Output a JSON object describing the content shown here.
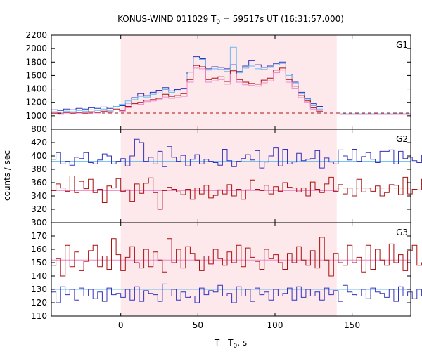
{
  "title": {
    "prefix": "KONUS-WIND 011029 T",
    "sub": "0",
    "suffix": " = 59517s UT (16:31:57.000)"
  },
  "ylabel": "counts / sec",
  "xlabel": {
    "prefix": "T - T",
    "sub": "0",
    "suffix": ", s"
  },
  "colors": {
    "blue": "#3333bb",
    "red": "#aa1111",
    "lightblue": "#66bbee",
    "pink": "#ee88cc",
    "interval": "#fde8ec",
    "dash_blue": "#3333bb",
    "dash_red": "#aa1111"
  },
  "chart_data": [
    {
      "type": "line",
      "name": "G1",
      "xlim": [
        -45,
        188
      ],
      "xticks": [
        0,
        50,
        100,
        150
      ],
      "ylim": [
        800,
        2200
      ],
      "yticks": [
        800,
        1000,
        1200,
        1400,
        1600,
        1800,
        2000,
        2200
      ],
      "highlight_interval": [
        0,
        140
      ],
      "x_start": -45,
      "x_step": 4,
      "series": [
        {
          "color": "blue",
          "step": true,
          "values": [
            1090,
            1080,
            1100,
            1090,
            1110,
            1100,
            1120,
            1110,
            1130,
            1110,
            1160,
            1150,
            1190,
            1270,
            1330,
            1300,
            1350,
            1380,
            1420,
            1370,
            1390,
            1410,
            1650,
            1880,
            1850,
            1700,
            1730,
            1720,
            1700,
            1760,
            1660,
            1740,
            1820,
            1760,
            1720,
            1740,
            1780,
            1800,
            1620,
            1500,
            1350,
            1260,
            1180,
            1140
          ]
        },
        {
          "color": "lightblue",
          "step": true,
          "values": [
            1060,
            1050,
            1070,
            1060,
            1080,
            1070,
            1090,
            1080,
            1100,
            1080,
            1140,
            1170,
            1220,
            1240,
            1290,
            1280,
            1320,
            1340,
            1390,
            1350,
            1370,
            1400,
            1620,
            1860,
            1840,
            1680,
            1700,
            1690,
            1660,
            2020,
            1640,
            1710,
            1740,
            1700,
            1690,
            1720,
            1760,
            1780,
            1600,
            1480,
            1330,
            1250,
            1150,
            1100
          ]
        },
        {
          "color": "red",
          "step": true,
          "values": [
            1040,
            1030,
            1050,
            1040,
            1050,
            1040,
            1060,
            1050,
            1070,
            1060,
            1100,
            1080,
            1140,
            1180,
            1200,
            1230,
            1240,
            1260,
            1320,
            1290,
            1300,
            1330,
            1540,
            1750,
            1730,
            1540,
            1560,
            1580,
            1510,
            1670,
            1540,
            1500,
            1480,
            1470,
            1530,
            1560,
            1680,
            1710,
            1540,
            1440,
            1300,
            1220,
            1120,
            1070
          ]
        },
        {
          "color": "pink",
          "step": true,
          "values": [
            1030,
            1020,
            1040,
            1030,
            1040,
            1030,
            1050,
            1040,
            1060,
            1050,
            1090,
            1070,
            1120,
            1160,
            1170,
            1210,
            1220,
            1240,
            1280,
            1260,
            1270,
            1290,
            1500,
            1710,
            1700,
            1500,
            1520,
            1540,
            1470,
            1620,
            1500,
            1460,
            1450,
            1440,
            1490,
            1520,
            1640,
            1680,
            1500,
            1410,
            1270,
            1200,
            1100,
            1060
          ]
        }
      ],
      "reference_lines": [
        {
          "color": "dash_blue",
          "dashed": true,
          "value": 1160,
          "from": -45,
          "to": 188
        },
        {
          "color": "dash_red",
          "dashed": true,
          "value": 1040,
          "from": -45,
          "to": 188
        }
      ],
      "post_segments": [
        {
          "color": "lightblue",
          "value": 1030,
          "from": 142,
          "to": 188
        },
        {
          "color": "pink",
          "value": 1020,
          "from": 142,
          "to": 188
        }
      ]
    },
    {
      "type": "line",
      "name": "G2",
      "xlim": [
        -45,
        188
      ],
      "xticks": [
        0,
        50,
        100,
        150
      ],
      "ylim": [
        300,
        440
      ],
      "yticks": [
        300,
        320,
        340,
        360,
        380,
        400,
        420
      ],
      "highlight_interval": [
        0,
        140
      ],
      "x_start": -45,
      "x_step": 3,
      "series": [
        {
          "color": "blue",
          "step": true,
          "values": [
            395,
            405,
            388,
            392,
            386,
            398,
            396,
            405,
            390,
            388,
            394,
            403,
            400,
            388,
            392,
            396,
            385,
            400,
            425,
            420,
            392,
            398,
            388,
            407,
            384,
            414,
            398,
            392,
            401,
            385,
            395,
            402,
            388,
            395,
            392,
            390,
            386,
            410,
            393,
            384,
            392,
            396,
            402,
            394,
            408,
            382,
            391,
            400,
            412,
            385,
            410,
            388,
            391,
            404,
            393,
            395,
            396,
            408,
            382,
            397,
            391,
            388,
            409,
            400,
            394,
            410,
            392,
            399,
            405,
            395,
            390,
            407,
            407,
            409,
            388,
            407,
            396,
            398,
            393,
            390,
            401,
            399,
            388,
            396,
            392,
            395,
            403,
            392,
            400,
            399,
            384,
            399,
            387,
            410,
            407,
            394,
            400,
            402,
            398,
            384,
            394,
            398,
            408,
            388,
            390,
            399,
            385
          ]
        },
        {
          "color": "red",
          "step": true,
          "values": [
            348,
            358,
            352,
            347,
            370,
            345,
            362,
            351,
            365,
            345,
            350,
            330,
            355,
            352,
            366,
            347,
            349,
            332,
            358,
            344,
            359,
            367,
            345,
            320,
            348,
            353,
            350,
            346,
            342,
            350,
            335,
            352,
            343,
            356,
            337,
            341,
            349,
            343,
            357,
            340,
            350,
            335,
            349,
            364,
            350,
            348,
            356,
            343,
            354,
            347,
            360,
            353,
            352,
            346,
            352,
            340,
            361,
            350,
            345,
            358,
            368,
            347,
            357,
            343,
            352,
            340,
            365,
            346,
            352,
            347,
            355,
            340,
            345,
            357,
            356,
            342,
            368,
            343,
            350,
            349,
            365,
            356,
            345,
            353,
            350,
            341,
            345,
            360,
            349,
            347,
            348,
            345,
            351,
            345,
            360,
            349,
            358,
            346,
            362,
            348,
            352,
            345,
            352,
            347,
            353,
            355,
            350
          ]
        }
      ],
      "reference_lines": [
        {
          "color": "lightblue",
          "dashed": false,
          "value": 392,
          "from": -45,
          "to": 188
        },
        {
          "color": "pink",
          "dashed": false,
          "value": 348,
          "from": -45,
          "to": 140
        },
        {
          "color": "dash_red",
          "dashed": true,
          "value": 352,
          "from": 140,
          "to": 188
        }
      ],
      "post_segments": []
    },
    {
      "type": "line",
      "name": "G3",
      "xlim": [
        -45,
        188
      ],
      "xticks": [
        0,
        50,
        100,
        150
      ],
      "ylim": [
        110,
        180
      ],
      "yticks": [
        110,
        120,
        130,
        140,
        150,
        160,
        170
      ],
      "highlight_interval": [
        0,
        140
      ],
      "x_start": -45,
      "x_step": 3,
      "series": [
        {
          "color": "blue",
          "step": true,
          "values": [
            128,
            120,
            132,
            126,
            130,
            122,
            131,
            125,
            130,
            123,
            128,
            121,
            131,
            126,
            127,
            124,
            130,
            122,
            132,
            121,
            129,
            127,
            126,
            121,
            134,
            125,
            130,
            122,
            128,
            124,
            125,
            120,
            131,
            126,
            129,
            128,
            133,
            125,
            127,
            120,
            132,
            125,
            130,
            121,
            131,
            126,
            128,
            122,
            130,
            125,
            127,
            131,
            122,
            132,
            124,
            130,
            125,
            128,
            122,
            131,
            126,
            129,
            121,
            133,
            128,
            126,
            125,
            130,
            123,
            131,
            128,
            127,
            124,
            130,
            121,
            132,
            125,
            128,
            123,
            130,
            125,
            129,
            120,
            131,
            126,
            129,
            121,
            132,
            124,
            130,
            126,
            128,
            123,
            131,
            125,
            130,
            124,
            131,
            128,
            127,
            133,
            124,
            130,
            121,
            127,
            126,
            128
          ]
        },
        {
          "color": "red",
          "step": true,
          "values": [
            148,
            153,
            140,
            163,
            147,
            158,
            144,
            151,
            159,
            163,
            147,
            155,
            145,
            168,
            156,
            144,
            154,
            162,
            150,
            146,
            160,
            147,
            158,
            152,
            143,
            168,
            150,
            160,
            146,
            162,
            157,
            152,
            144,
            155,
            149,
            160,
            153,
            148,
            158,
            150,
            163,
            147,
            161,
            154,
            151,
            145,
            160,
            153,
            156,
            150,
            145,
            157,
            150,
            162,
            152,
            148,
            159,
            146,
            169,
            152,
            140,
            157,
            150,
            148,
            163,
            150,
            154,
            143,
            163,
            145,
            160,
            152,
            148,
            164,
            150,
            156,
            144,
            159,
            163,
            148,
            150,
            142,
            147,
            156,
            150,
            149,
            155,
            142,
            150,
            158,
            146,
            155,
            157,
            149,
            150,
            156,
            151,
            153,
            150,
            148,
            163,
            152,
            150,
            156,
            147,
            153,
            152
          ]
        }
      ],
      "reference_lines": [
        {
          "color": "lightblue",
          "dashed": false,
          "value": 130,
          "from": -45,
          "to": 188
        },
        {
          "color": "pink",
          "dashed": false,
          "value": 152,
          "from": -45,
          "to": 188
        }
      ],
      "post_segments": []
    }
  ]
}
